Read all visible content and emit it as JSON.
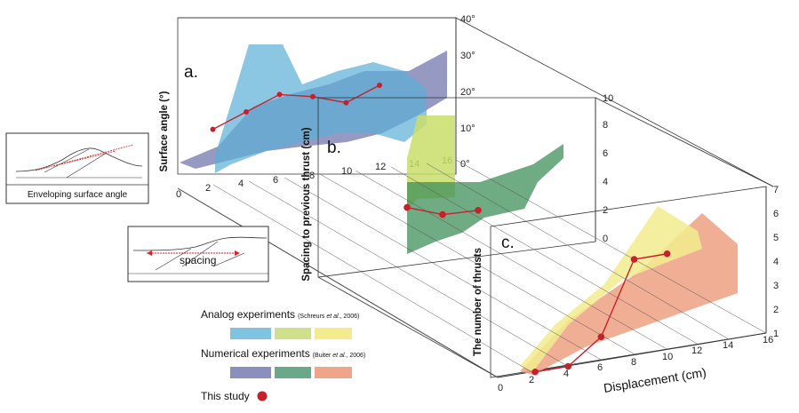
{
  "panels": {
    "a": {
      "letter": "a.",
      "ylabel": "Surface angle (°)",
      "yticks": [
        "40°",
        "30°",
        "20°",
        "10°",
        "0°"
      ],
      "xticks": [
        "0",
        "2",
        "4",
        "6",
        "8",
        "10",
        "12",
        "14",
        "16"
      ]
    },
    "b": {
      "letter": "b.",
      "ylabel": "Spacing to previous thrust (cm)",
      "yticks": [
        "10",
        "8",
        "6",
        "4",
        "2",
        "0"
      ]
    },
    "c": {
      "letter": "c.",
      "ylabel": "The number of thrusts",
      "yticks": [
        "7",
        "6",
        "5",
        "4",
        "3",
        "2",
        "1",
        "0"
      ],
      "xticks": [
        "0",
        "2",
        "4",
        "6",
        "8",
        "10",
        "12",
        "14",
        "16"
      ],
      "xlabel": "Displacement (cm)"
    }
  },
  "insets": {
    "surface_angle": "Enveloping surface angle",
    "spacing": "spacing"
  },
  "legend": {
    "analog_label": "Analog experiments",
    "analog_ref_prefix": "(Schreurs ",
    "analog_ref_etal": "et al.",
    "analog_ref_suffix": ", 2006)",
    "numerical_label": "Numerical experiments",
    "numerical_ref_prefix": "(Buiter ",
    "numerical_ref_etal": "et al.",
    "numerical_ref_suffix": ", 2006)",
    "this_study_label": "This study"
  },
  "colors": {
    "analog": [
      "#7ec4e0",
      "#cfe08a",
      "#f2ec8e"
    ],
    "numerical": [
      "#8b8fbd",
      "#6aa88a",
      "#eea58a"
    ],
    "this_study": "#c8202a"
  },
  "chart_data": [
    {
      "type": "line",
      "panel": "a",
      "ylabel": "Surface angle (°)",
      "ylim": [
        0,
        40
      ],
      "series": [
        {
          "name": "This study",
          "x": [
            2,
            4,
            6,
            8,
            10,
            12
          ],
          "values": [
            11,
            15,
            19,
            18,
            16,
            20
          ]
        }
      ]
    },
    {
      "type": "line",
      "panel": "b",
      "ylabel": "Spacing to previous thrust (cm)",
      "ylim": [
        0,
        10
      ],
      "series": [
        {
          "name": "This study",
          "x": [
            12,
            14,
            16
          ],
          "values": [
            2.4,
            1.9,
            2.2
          ]
        }
      ]
    },
    {
      "type": "line",
      "panel": "c",
      "ylabel": "The number of thrusts",
      "xlabel": "Displacement (cm)",
      "ylim": [
        0,
        7
      ],
      "xlim": [
        0,
        16
      ],
      "series": [
        {
          "name": "This study",
          "x": [
            2,
            4,
            6,
            8,
            10
          ],
          "values": [
            0,
            0,
            1,
            4,
            4
          ]
        }
      ]
    }
  ]
}
